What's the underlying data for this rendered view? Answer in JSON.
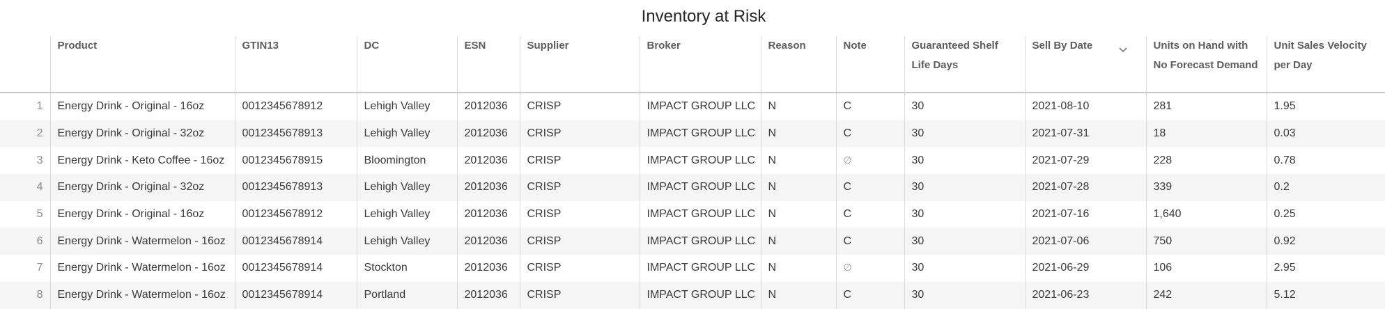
{
  "title": "Inventory at Risk",
  "columns": [
    {
      "label": ""
    },
    {
      "label": "Product"
    },
    {
      "label": "GTIN13"
    },
    {
      "label": "DC"
    },
    {
      "label": "ESN"
    },
    {
      "label": "Supplier"
    },
    {
      "label": "Broker"
    },
    {
      "label": "Reason"
    },
    {
      "label": "Note"
    },
    {
      "label": "Guaranteed Shelf Life Days"
    },
    {
      "label": "Sell By Date"
    },
    {
      "label": "Units on Hand with No Forecast Demand"
    },
    {
      "label": "Unit Sales Velocity per Day"
    }
  ],
  "sort_icon": "chevron-down-icon",
  "rows": [
    {
      "idx": "1",
      "product": "Energy Drink - Original - 16oz",
      "gtin": "0012345678912",
      "dc": "Lehigh Valley",
      "esn": "2012036",
      "supplier": "CRISP",
      "broker": "IMPACT GROUP LLC",
      "reason": "N",
      "note": "C",
      "shelf": "30",
      "sellby": "2021-08-10",
      "units": "281",
      "velocity": "1.95"
    },
    {
      "idx": "2",
      "product": "Energy Drink - Original - 32oz",
      "gtin": "0012345678913",
      "dc": "Lehigh Valley",
      "esn": "2012036",
      "supplier": "CRISP",
      "broker": "IMPACT GROUP LLC",
      "reason": "N",
      "note": "C",
      "shelf": "30",
      "sellby": "2021-07-31",
      "units": "18",
      "velocity": "0.03"
    },
    {
      "idx": "3",
      "product": "Energy Drink - Keto Coffee - 16oz",
      "gtin": "0012345678915",
      "dc": "Bloomington",
      "esn": "2012036",
      "supplier": "CRISP",
      "broker": "IMPACT GROUP LLC",
      "reason": "N",
      "note": "∅",
      "shelf": "30",
      "sellby": "2021-07-29",
      "units": "228",
      "velocity": "0.78"
    },
    {
      "idx": "4",
      "product": "Energy Drink - Original - 32oz",
      "gtin": "0012345678913",
      "dc": "Lehigh Valley",
      "esn": "2012036",
      "supplier": "CRISP",
      "broker": "IMPACT GROUP LLC",
      "reason": "N",
      "note": "C",
      "shelf": "30",
      "sellby": "2021-07-28",
      "units": "339",
      "velocity": "0.2"
    },
    {
      "idx": "5",
      "product": "Energy Drink - Original - 16oz",
      "gtin": "0012345678912",
      "dc": "Lehigh Valley",
      "esn": "2012036",
      "supplier": "CRISP",
      "broker": "IMPACT GROUP LLC",
      "reason": "N",
      "note": "C",
      "shelf": "30",
      "sellby": "2021-07-16",
      "units": "1,640",
      "velocity": "0.25"
    },
    {
      "idx": "6",
      "product": "Energy Drink - Watermelon - 16oz",
      "gtin": "0012345678914",
      "dc": "Lehigh Valley",
      "esn": "2012036",
      "supplier": "CRISP",
      "broker": "IMPACT GROUP LLC",
      "reason": "N",
      "note": "C",
      "shelf": "30",
      "sellby": "2021-07-06",
      "units": "750",
      "velocity": "0.92"
    },
    {
      "idx": "7",
      "product": "Energy Drink - Watermelon - 16oz",
      "gtin": "0012345678914",
      "dc": "Stockton",
      "esn": "2012036",
      "supplier": "CRISP",
      "broker": "IMPACT GROUP LLC",
      "reason": "N",
      "note": "∅",
      "shelf": "30",
      "sellby": "2021-06-29",
      "units": "106",
      "velocity": "2.95"
    },
    {
      "idx": "8",
      "product": "Energy Drink - Watermelon - 16oz",
      "gtin": "0012345678914",
      "dc": "Portland",
      "esn": "2012036",
      "supplier": "CRISP",
      "broker": "IMPACT GROUP LLC",
      "reason": "N",
      "note": "C",
      "shelf": "30",
      "sellby": "2021-06-23",
      "units": "242",
      "velocity": "5.12"
    }
  ]
}
